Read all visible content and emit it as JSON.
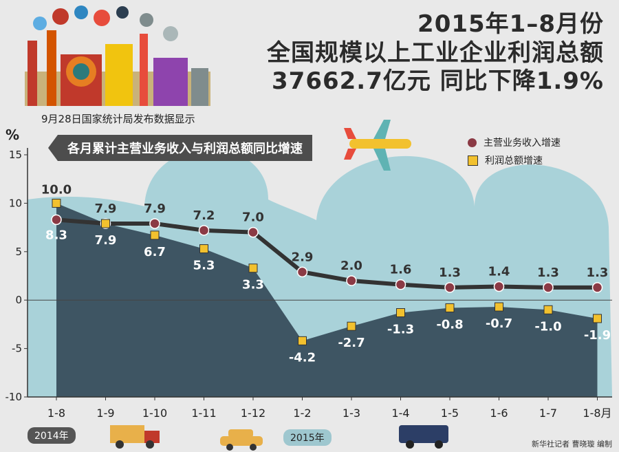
{
  "header": {
    "title_line1": "2015年1–8月份",
    "title_line2": "全国规模以上工业企业利润总额",
    "title_line3": "37662.7亿元 同比下降1.9%"
  },
  "source_note": "9月28日国家统计局发布数据显示",
  "year_tags": {
    "y2014": "2014年",
    "y2015": "2015年"
  },
  "credit": "新华社记者 曹晓璇 编制",
  "colors": {
    "revenue": "#8b3a45",
    "profit": "#f2c12e",
    "area_profit": "#3e5563",
    "area_revenue_bg": "#a9d2d9",
    "line": "#333333"
  },
  "chart_data": {
    "type": "line",
    "title": "各月累计主营业务收入与利润总额同比增速",
    "ylabel": "%",
    "ylim": [
      -10,
      15
    ],
    "yticks": [
      -10,
      -5,
      0,
      5,
      10,
      15
    ],
    "categories": [
      "1-8",
      "1-9",
      "1-10",
      "1-11",
      "1-12",
      "1-2",
      "1-3",
      "1-4",
      "1-5",
      "1-6",
      "1-7",
      "1-8月"
    ],
    "series": [
      {
        "name": "主营业务收入增速",
        "marker": "circle",
        "values": [
          8.3,
          7.9,
          7.9,
          7.2,
          7.0,
          2.9,
          2.0,
          1.6,
          1.3,
          1.4,
          1.3,
          1.3
        ]
      },
      {
        "name": "利润总额增速",
        "marker": "square",
        "values": [
          10.0,
          7.9,
          6.7,
          5.3,
          3.3,
          -4.2,
          -2.7,
          -1.3,
          -0.8,
          -0.7,
          -1.0,
          -1.9
        ]
      }
    ],
    "legend_position": "top-right",
    "grid": false
  }
}
